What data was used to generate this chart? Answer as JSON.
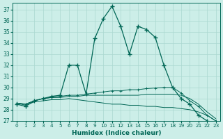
{
  "xlabel": "Humidex (Indice chaleur)",
  "background_color": "#cceee8",
  "grid_color": "#aad8d0",
  "line_color": "#006655",
  "xlim": [
    -0.5,
    23.5
  ],
  "ylim": [
    27,
    37.6
  ],
  "yticks": [
    27,
    28,
    29,
    30,
    31,
    32,
    33,
    34,
    35,
    36,
    37
  ],
  "xticks": [
    0,
    1,
    2,
    3,
    4,
    5,
    6,
    7,
    8,
    9,
    10,
    11,
    12,
    13,
    14,
    15,
    16,
    17,
    18,
    19,
    20,
    21,
    22,
    23
  ],
  "series_main": [
    28.5,
    28.3,
    28.8,
    29.0,
    29.2,
    29.3,
    32.0,
    32.0,
    29.4,
    34.4,
    36.2,
    37.3,
    35.5,
    33.0,
    35.5,
    35.2,
    34.5,
    32.0,
    30.0,
    29.0,
    28.5,
    27.5,
    27.0
  ],
  "series_main_x": [
    0,
    1,
    2,
    3,
    4,
    5,
    6,
    7,
    8,
    9,
    10,
    11,
    12,
    13,
    14,
    15,
    16,
    17,
    18,
    19,
    20,
    21,
    22
  ],
  "series_flat1": [
    28.6,
    28.5,
    28.8,
    29.0,
    29.1,
    29.2,
    29.3,
    29.3,
    29.4,
    29.5,
    29.6,
    29.7,
    29.7,
    29.8,
    29.8,
    29.9,
    29.95,
    30.0,
    30.0,
    29.5,
    28.8,
    28.3,
    27.5,
    27.0
  ],
  "series_flat2": [
    28.6,
    28.5,
    28.8,
    29.0,
    29.1,
    29.1,
    29.2,
    29.2,
    29.3,
    29.3,
    29.3,
    29.3,
    29.3,
    29.3,
    29.3,
    29.4,
    29.4,
    29.4,
    29.4,
    29.3,
    29.0,
    28.5,
    27.8,
    27.2
  ],
  "series_flat3": [
    28.6,
    28.4,
    28.7,
    28.8,
    28.9,
    28.9,
    29.0,
    28.9,
    28.8,
    28.7,
    28.6,
    28.5,
    28.5,
    28.4,
    28.4,
    28.3,
    28.3,
    28.2,
    28.2,
    28.1,
    28.0,
    27.8,
    27.5,
    27.0
  ]
}
